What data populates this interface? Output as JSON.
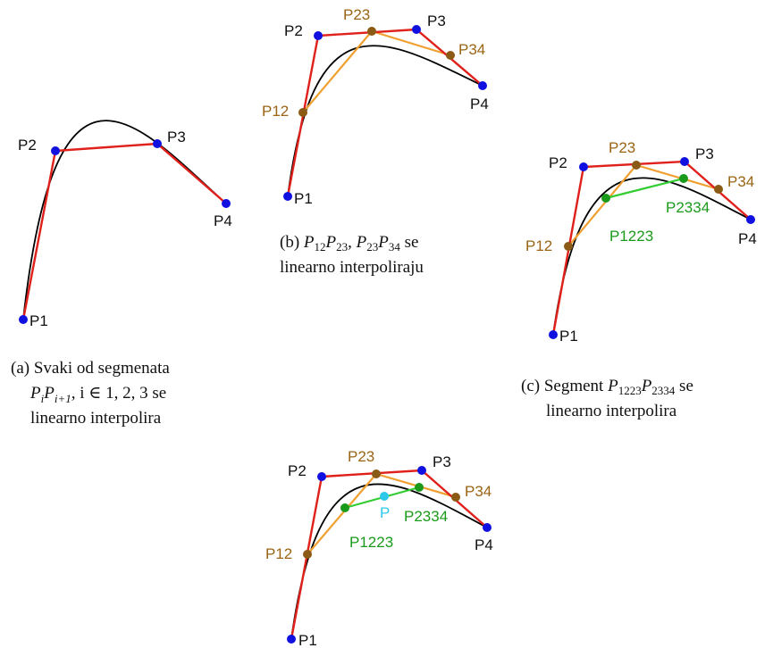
{
  "colors": {
    "control_polygon": "#e0201b",
    "level1": "#f0a030",
    "level2": "#33cc33",
    "curve": "#000000",
    "control_point": "#1010e0",
    "level1_point": "#8b5a14",
    "level2_point": "#1a9a1a",
    "result_point": "#2ec8e8",
    "label_control": "#111111",
    "label_level1": "#9a6414",
    "label_level2": "#1a9a1a",
    "label_result": "#2ec8e8"
  },
  "labels": {
    "p1": "P1",
    "p2": "P2",
    "p3": "P3",
    "p4": "P4",
    "p12": "P12",
    "p23": "P23",
    "p34": "P34",
    "p1223": "P1223",
    "p2334": "P2334",
    "p": "P"
  },
  "captions": {
    "a": {
      "line1": "(a) Svaki od segmenata",
      "line2_p": "P",
      "line2_i": "i",
      "line2_p2": "P",
      "line2_sub2": "i+1",
      "line2_rest": ", i ∈ 1, 2, 3 se",
      "line3": "linearno interpolira"
    },
    "b": {
      "prefix": "(b) ",
      "p_a": "P",
      "sub_a": "12",
      "p_b": "P",
      "sub_b": "23",
      "sep": ", ",
      "p_c": "P",
      "sub_c": "23",
      "p_d": "P",
      "sub_d": "34",
      "suffix": " se",
      "line2": "linearno interpoliraju"
    },
    "c": {
      "prefix": "(c) Segment ",
      "p_a": "P",
      "sub_a": "1223",
      "p_b": "P",
      "sub_b": "2334",
      "suffix": " se",
      "line2": "linearno interpolira"
    }
  }
}
